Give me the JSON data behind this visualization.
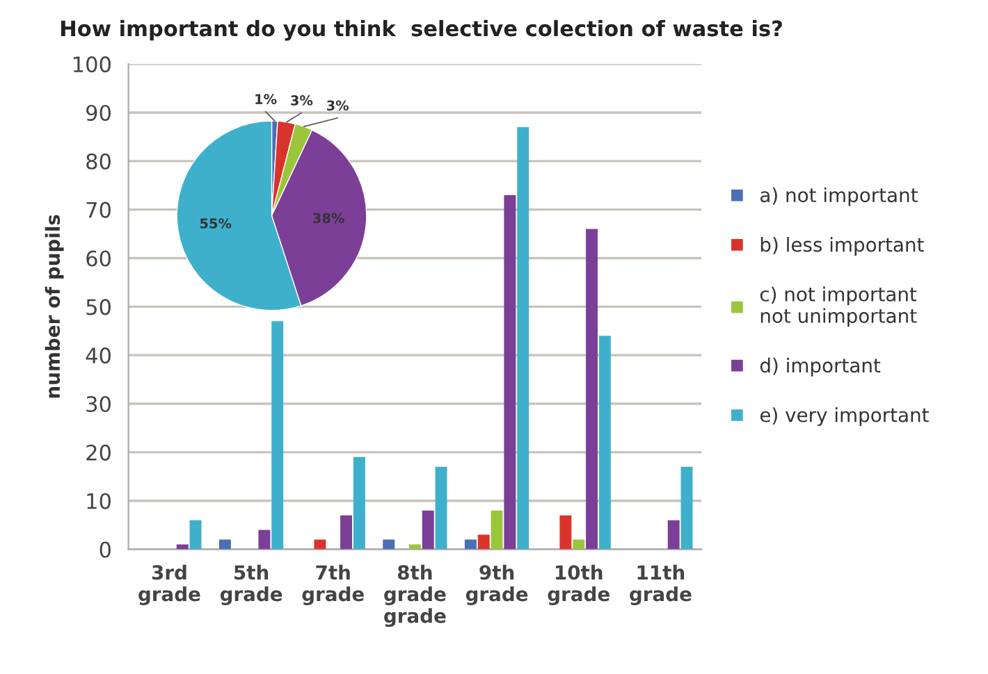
{
  "chart_data": [
    {
      "type": "bar",
      "title": "How important do you think  selective colection of waste is?",
      "ylabel": "number of pupils",
      "categories": [
        "3rd\ngrade",
        "5th\ngrade",
        "7th\ngrade",
        "8th\ngrade\ngrade",
        "9th\ngrade",
        "10th\ngrade",
        "11th\ngrade"
      ],
      "series": [
        {
          "name": "a) not important",
          "color": "#4a6fb5",
          "values": [
            0,
            2,
            0,
            2,
            2,
            0,
            0
          ]
        },
        {
          "name": "b) less important",
          "color": "#d9342b",
          "values": [
            0,
            0,
            2,
            0,
            3,
            7,
            0
          ]
        },
        {
          "name": "c) not important\nnot unimportant",
          "color": "#9bc63b",
          "values": [
            0,
            0,
            0,
            1,
            8,
            2,
            0
          ]
        },
        {
          "name": "d) important",
          "color": "#7b3f98",
          "values": [
            1,
            4,
            7,
            8,
            73,
            66,
            6
          ]
        },
        {
          "name": "e) very important",
          "color": "#3fb0cc",
          "values": [
            6,
            47,
            19,
            17,
            87,
            44,
            17
          ]
        }
      ],
      "ylim": [
        0,
        100
      ],
      "yticks": [
        0,
        10,
        20,
        30,
        40,
        50,
        60,
        70,
        80,
        90,
        100
      ],
      "grid": "y",
      "legend": "right"
    },
    {
      "type": "pie",
      "categories": [
        null,
        null,
        null,
        null,
        null
      ],
      "values": [
        1,
        3,
        3,
        38,
        55
      ],
      "colors": [
        "#4a6fb5",
        "#d9342b",
        "#9bc63b",
        "#7b3f98",
        "#3fb0cc"
      ],
      "value_labels": [
        "1%",
        "3%",
        "3%",
        "38%",
        "55%"
      ]
    }
  ]
}
